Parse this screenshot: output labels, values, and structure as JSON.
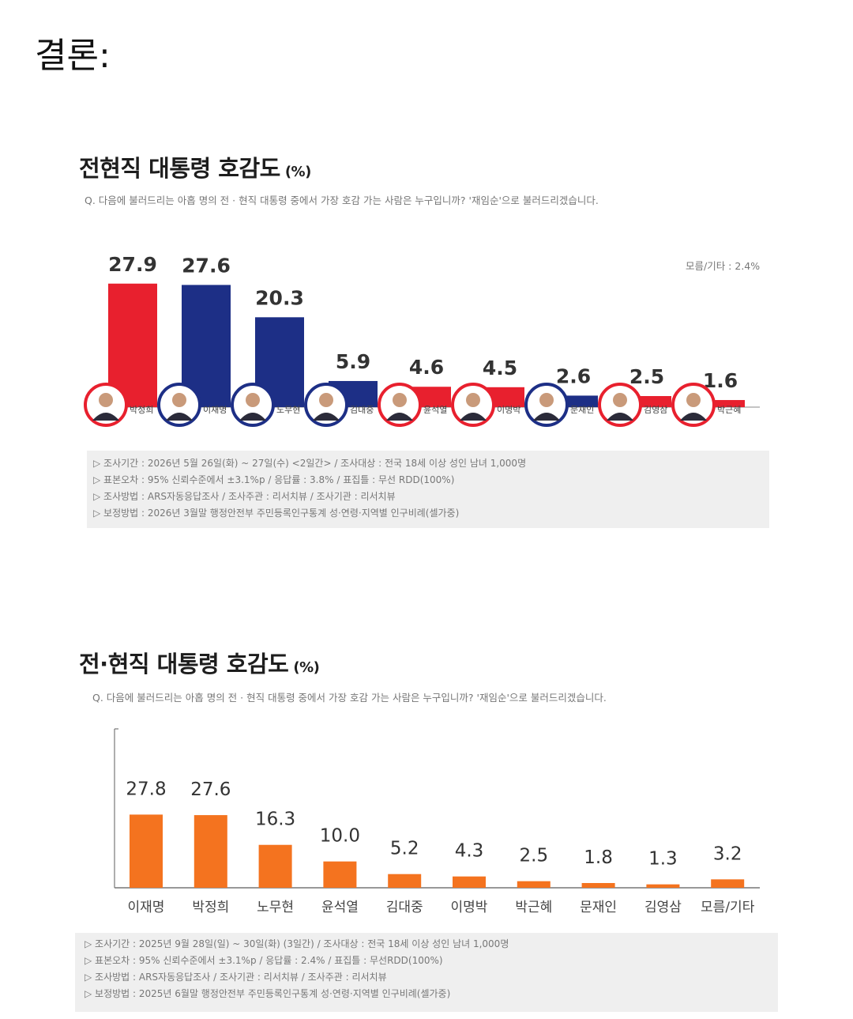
{
  "heading": "결론:",
  "chart_data": [
    {
      "type": "bar",
      "title": "전현직 대통령 호감도",
      "unit": "(%)",
      "question": "Q. 다음에 불러드리는 아홉 명의 전 · 현직 대통령 중에서 가장 호감 가는 사람은 누구입니까?  '재임순'으로 불러드리겠습니다.",
      "other_label": "모름/기타 : 2.4%",
      "categories": [
        "박정희",
        "이재명",
        "노무현",
        "김대중",
        "윤석열",
        "이명박",
        "문재인",
        "김영삼",
        "박근혜"
      ],
      "values": [
        27.9,
        27.6,
        20.3,
        5.9,
        4.6,
        4.5,
        2.6,
        2.5,
        1.6
      ],
      "bar_colors": [
        "#e8202e",
        "#1d2f86",
        "#1d2f86",
        "#1d2f86",
        "#e8202e",
        "#e8202e",
        "#1d2f86",
        "#e8202e",
        "#e8202e"
      ],
      "value_labels": [
        "27.9",
        "27.6",
        "20.3",
        "5.9",
        "4.6",
        "4.5",
        "2.6",
        "2.5",
        "1.6"
      ],
      "ylim": [
        0,
        30
      ],
      "notes": [
        "▷ 조사기간 : 2026년 5월 26일(화) ~ 27일(수) <2일간> / 조사대상 : 전국 18세 이상 성인 남녀 1,000명",
        "▷ 표본오차 : 95% 신뢰수준에서 ±3.1%p / 응답률 : 3.8% / 표집틀 : 무선 RDD(100%)",
        "▷ 조사방법 : ARS자동응답조사 / 조사주관 : 리서치뷰 / 조사기관 : 리서치뷰",
        "▷ 보정방법 : 2026년 3월말 행정안전부 주민등록인구통계 성·연령·지역별 인구비례(셀가중)"
      ]
    },
    {
      "type": "bar",
      "title": "전·현직 대통령 호감도",
      "unit": "(%)",
      "question": "Q. 다음에 불러드리는 아홉 명의 전 · 현직 대통령 중에서 가장 호감 가는 사람은 누구입니까? '재임순'으로 불러드리겠습니다.",
      "categories": [
        "이재명",
        "박정희",
        "노무현",
        "윤석열",
        "김대중",
        "이명박",
        "박근혜",
        "문재인",
        "김영삼",
        "모름/기타"
      ],
      "values": [
        27.8,
        27.6,
        16.3,
        10.0,
        5.2,
        4.3,
        2.5,
        1.8,
        1.3,
        3.2
      ],
      "value_labels": [
        "27.8",
        "27.6",
        "16.3",
        "10.0",
        "5.2",
        "4.3",
        "2.5",
        "1.8",
        "1.3",
        "3.2"
      ],
      "bar_color": "#f4731f",
      "ylim": [
        0,
        30
      ],
      "notes": [
        "▷ 조사기간 : 2025년 9월 28일(일) ~ 30일(화) (3일간) / 조사대상 : 전국 18세 이상 성인 남녀 1,000명",
        "▷ 표본오차 : 95% 신뢰수준에서 ±3.1%p / 응답률 : 2.4% / 표집틀 : 무선RDD(100%)",
        "▷ 조사방법 : ARS자동응답조사 / 조사기관 : 리서치뷰 / 조사주관 : 리서치뷰",
        "▷ 보정방법 : 2025년 6월말 행정안전부 주민등록인구통계 성·연령·지역별 인구비례(셀가중)"
      ]
    }
  ]
}
